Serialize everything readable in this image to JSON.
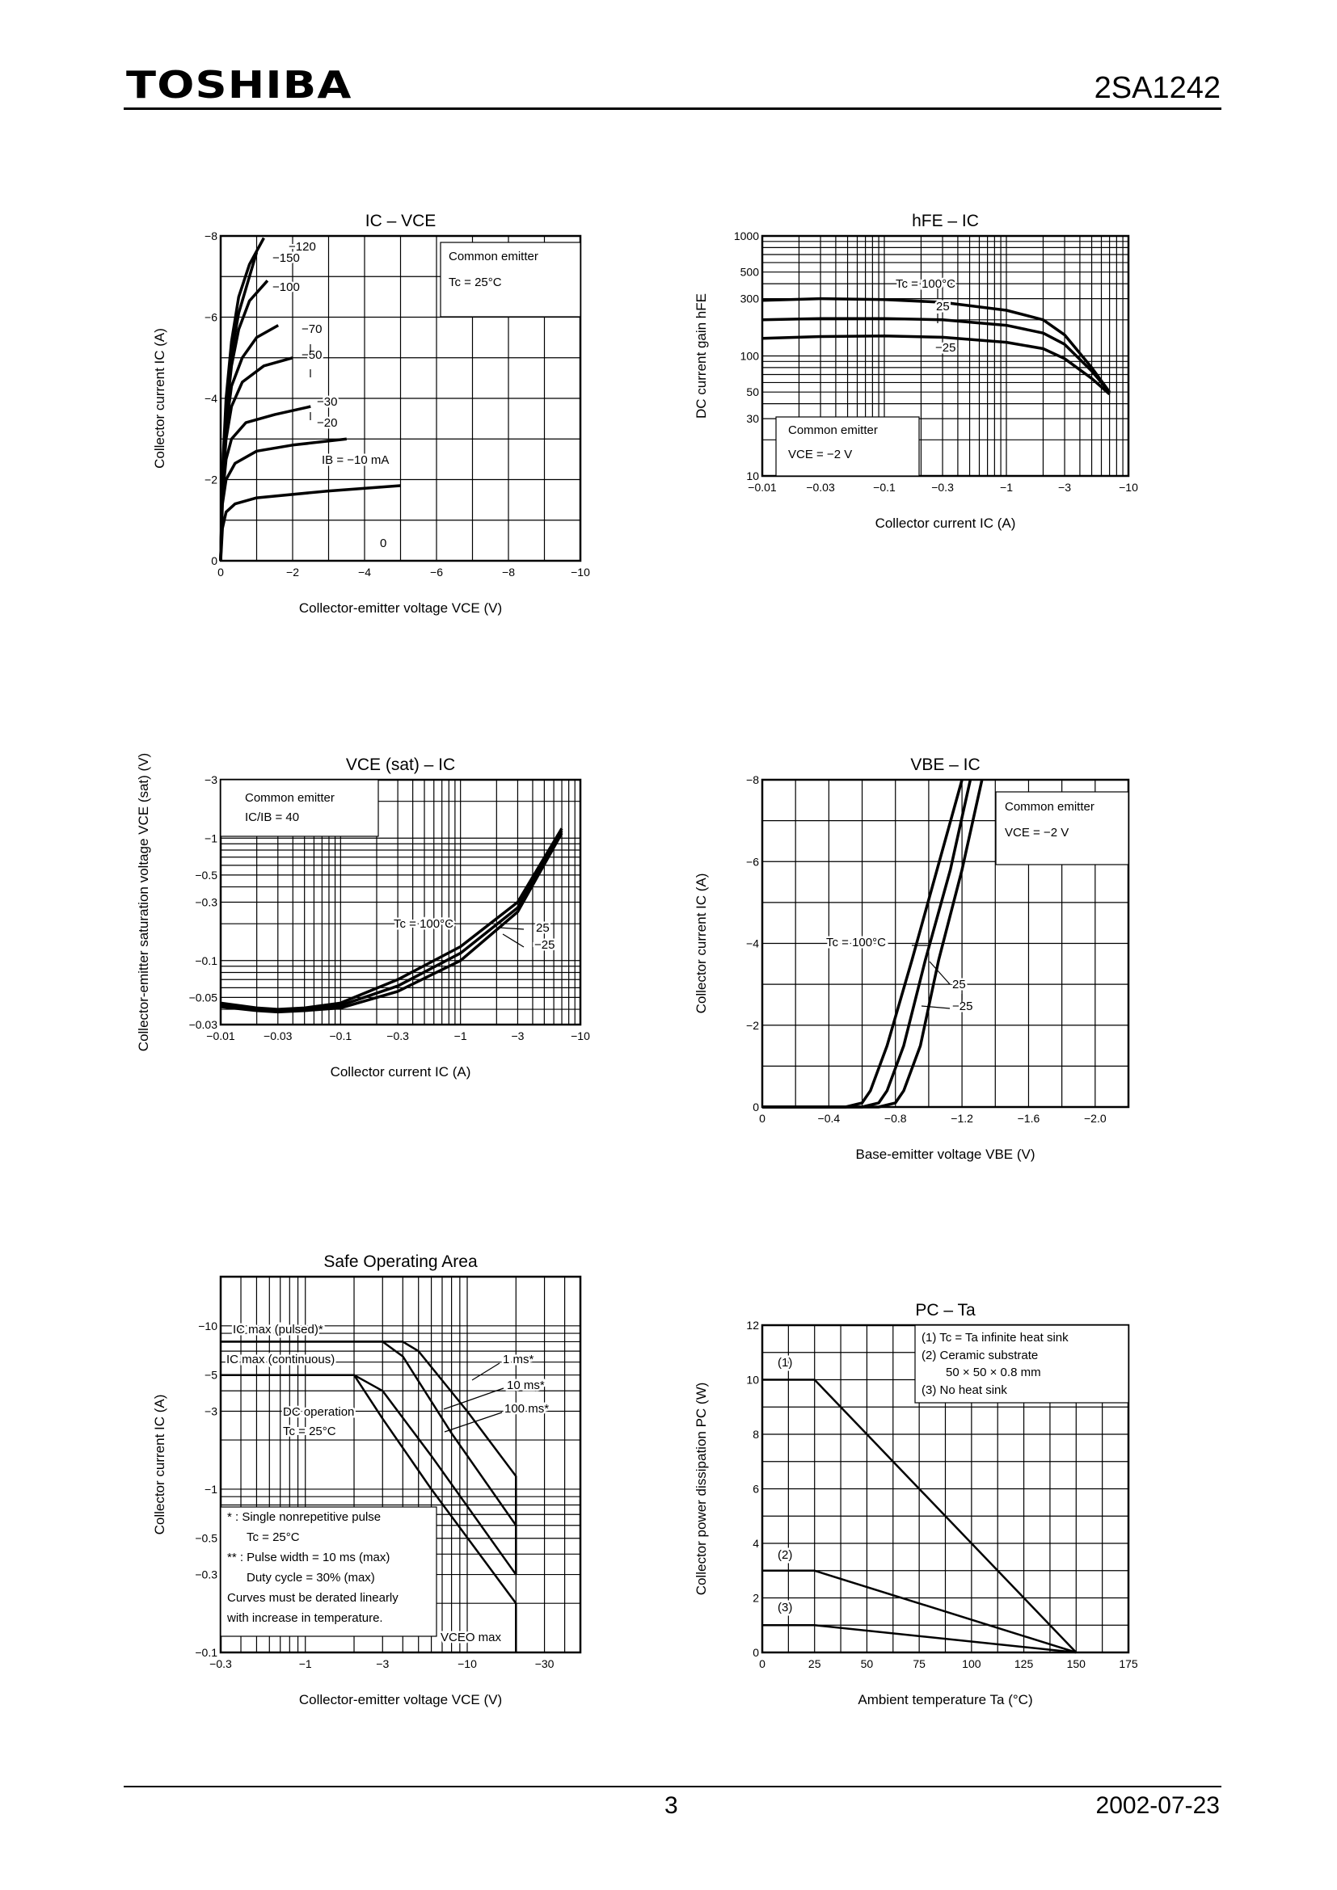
{
  "header": {
    "logo": "TOSHIBA",
    "part_number": "2SA1242"
  },
  "footer": {
    "page": "3",
    "date": "2002-07-23"
  },
  "chart_data": [
    {
      "id": "ic_vce",
      "type": "line",
      "title": "IC – VCE",
      "xlabel": "Collector-emitter voltage   VCE   (V)",
      "ylabel": "Collector current   IC   (A)",
      "xlim": [
        0,
        -10
      ],
      "ylim": [
        0,
        -8
      ],
      "xticks": [
        "0",
        "−2",
        "−4",
        "−6",
        "−8",
        "−10"
      ],
      "yticks": [
        "0",
        "−2",
        "−4",
        "−6",
        "−8"
      ],
      "legend": [
        "Common emitter",
        "Tc = 25°C"
      ],
      "annotations": [
        "−120",
        "−150",
        "−100",
        "−70",
        "−50",
        "−30",
        "−20",
        "IB = −10 mA",
        "0"
      ],
      "series": [
        {
          "name": "−150",
          "x": [
            0,
            -0.05,
            -0.15,
            -0.3,
            -0.5,
            -0.8,
            -1.2
          ],
          "y": [
            0,
            -2.2,
            -4.0,
            -5.4,
            -6.5,
            -7.3,
            -7.95
          ]
        },
        {
          "name": "−120",
          "x": [
            0,
            -0.05,
            -0.15,
            -0.3,
            -0.5,
            -0.8,
            -1.0
          ],
          "y": [
            0,
            -2.1,
            -3.8,
            -5.1,
            -6.1,
            -7.0,
            -7.6
          ]
        },
        {
          "name": "−100",
          "x": [
            0,
            -0.05,
            -0.15,
            -0.3,
            -0.5,
            -0.8,
            -1.3
          ],
          "y": [
            0,
            -2.0,
            -3.6,
            -4.8,
            -5.7,
            -6.4,
            -6.9
          ]
        },
        {
          "name": "−70",
          "x": [
            0,
            -0.05,
            -0.15,
            -0.3,
            -0.6,
            -1.0,
            -1.6
          ],
          "y": [
            0,
            -1.9,
            -3.3,
            -4.3,
            -5.0,
            -5.5,
            -5.8
          ]
        },
        {
          "name": "−50",
          "x": [
            0,
            -0.05,
            -0.15,
            -0.3,
            -0.6,
            -1.2,
            -2.0
          ],
          "y": [
            0,
            -1.8,
            -3.0,
            -3.8,
            -4.4,
            -4.8,
            -5.0
          ]
        },
        {
          "name": "−30",
          "x": [
            0,
            -0.05,
            -0.15,
            -0.3,
            -0.7,
            -1.5,
            -2.5
          ],
          "y": [
            0,
            -1.6,
            -2.5,
            -3.0,
            -3.4,
            -3.6,
            -3.8
          ]
        },
        {
          "name": "−20",
          "x": [
            0,
            -0.05,
            -0.15,
            -0.4,
            -1.0,
            -2.0,
            -3.5
          ],
          "y": [
            0,
            -1.4,
            -2.0,
            -2.4,
            -2.7,
            -2.85,
            -3.0
          ]
        },
        {
          "name": "−10",
          "x": [
            0,
            -0.05,
            -0.15,
            -0.4,
            -1.0,
            -3.0,
            -5.0
          ],
          "y": [
            0,
            -0.8,
            -1.2,
            -1.4,
            -1.55,
            -1.72,
            -1.85
          ]
        }
      ]
    },
    {
      "id": "hfe_ic",
      "type": "line",
      "title": "hFE – IC",
      "xlabel": "Collector current   IC   (A)",
      "ylabel": "DC current gain   hFE",
      "xscale": "log",
      "yscale": "log",
      "xlim": [
        -0.01,
        -10
      ],
      "ylim": [
        10,
        1000
      ],
      "xticks": [
        "−0.01",
        "−0.03",
        "−0.1",
        "−0.3",
        "−1",
        "−3",
        "−10"
      ],
      "yticks": [
        "10",
        "30",
        "50",
        "100",
        "300",
        "500",
        "1000"
      ],
      "legend": [
        "Common emitter",
        "VCE = −2 V"
      ],
      "annotations": [
        "Tc = 100°C",
        "25",
        "−25"
      ],
      "series": [
        {
          "name": "Tc = 100°C",
          "x": [
            -0.01,
            -0.03,
            -0.1,
            -0.3,
            -1,
            -2,
            -3,
            -5,
            -7
          ],
          "y": [
            290,
            300,
            295,
            280,
            240,
            200,
            150,
            80,
            50
          ]
        },
        {
          "name": "25",
          "x": [
            -0.01,
            -0.03,
            -0.1,
            -0.3,
            -1,
            -2,
            -3,
            -5,
            -7
          ],
          "y": [
            200,
            205,
            205,
            200,
            180,
            155,
            125,
            75,
            50
          ]
        },
        {
          "name": "−25",
          "x": [
            -0.01,
            -0.03,
            -0.1,
            -0.3,
            -1,
            -2,
            -3,
            -5,
            -7
          ],
          "y": [
            140,
            145,
            147,
            143,
            130,
            115,
            95,
            65,
            48
          ]
        }
      ]
    },
    {
      "id": "vcesat_ic",
      "type": "line",
      "title": "VCE (sat) – IC",
      "xlabel": "Collector current   IC   (A)",
      "ylabel": "Collector-emitter saturation voltage   VCE (sat)   (V)",
      "xscale": "log",
      "yscale": "log",
      "xlim": [
        -0.01,
        -10
      ],
      "ylim": [
        -0.03,
        -3
      ],
      "xticks": [
        "−0.01",
        "−0.03",
        "−0.1",
        "−0.3",
        "−1",
        "−3",
        "−10"
      ],
      "yticks": [
        "−0.03",
        "−0.05",
        "−0.1",
        "−0.3",
        "−0.5",
        "−1",
        "−3"
      ],
      "legend": [
        "Common emitter",
        "IC/IB = 40"
      ],
      "annotations": [
        "Tc = 100°C",
        "25",
        "−25"
      ],
      "series": [
        {
          "name": "Tc = 100°C",
          "x": [
            -0.01,
            -0.02,
            -0.03,
            -0.05,
            -0.1,
            -0.3,
            -1,
            -3,
            -7
          ],
          "y": [
            -0.045,
            -0.041,
            -0.04,
            -0.041,
            -0.045,
            -0.07,
            -0.13,
            -0.3,
            -1.2
          ]
        },
        {
          "name": "25",
          "x": [
            -0.01,
            -0.02,
            -0.03,
            -0.05,
            -0.1,
            -0.3,
            -1,
            -3,
            -7
          ],
          "y": [
            -0.043,
            -0.04,
            -0.039,
            -0.04,
            -0.043,
            -0.062,
            -0.115,
            -0.27,
            -1.15
          ]
        },
        {
          "name": "−25",
          "x": [
            -0.01,
            -0.02,
            -0.03,
            -0.05,
            -0.1,
            -0.3,
            -1,
            -3,
            -7
          ],
          "y": [
            -0.042,
            -0.039,
            -0.038,
            -0.039,
            -0.041,
            -0.056,
            -0.1,
            -0.25,
            -1.1
          ]
        }
      ]
    },
    {
      "id": "vbe_ic",
      "type": "line",
      "title": "VBE – IC",
      "xlabel": "Base-emitter voltage   VBE   (V)",
      "ylabel": "Collector current   IC   (A)",
      "xlim": [
        0,
        -2.2
      ],
      "ylim": [
        0,
        -8
      ],
      "xticks": [
        "0",
        "−0.4",
        "−0.8",
        "−1.2",
        "−1.6",
        "−2.0"
      ],
      "yticks": [
        "0",
        "−2",
        "−4",
        "−6",
        "−8"
      ],
      "legend": [
        "Common emitter",
        "VCE = −2 V"
      ],
      "annotations": [
        "Tc = 100°C",
        "25",
        "−25"
      ],
      "series": [
        {
          "name": "Tc = 100°C",
          "x": [
            0,
            -0.5,
            -0.6,
            -0.65,
            -0.75,
            -0.9,
            -1.05,
            -1.2
          ],
          "y": [
            0,
            0,
            -0.1,
            -0.4,
            -1.5,
            -3.6,
            -5.8,
            -8
          ]
        },
        {
          "name": "25",
          "x": [
            0,
            -0.6,
            -0.7,
            -0.75,
            -0.85,
            -0.98,
            -1.13,
            -1.25
          ],
          "y": [
            0,
            0,
            -0.1,
            -0.4,
            -1.5,
            -3.6,
            -5.8,
            -8
          ]
        },
        {
          "name": "−25",
          "x": [
            0,
            -0.7,
            -0.8,
            -0.85,
            -0.95,
            -1.06,
            -1.2,
            -1.32
          ],
          "y": [
            0,
            0,
            -0.1,
            -0.4,
            -1.5,
            -3.6,
            -5.8,
            -8
          ]
        }
      ]
    },
    {
      "id": "soa",
      "type": "line",
      "title": "Safe Operating Area",
      "xlabel": "Collector-emitter voltage   VCE   (V)",
      "ylabel": "Collector current   IC   (A)",
      "xscale": "log",
      "yscale": "log",
      "xlim": [
        -0.3,
        -50
      ],
      "ylim": [
        -0.1,
        -20
      ],
      "xticks": [
        "−0.3",
        "−1",
        "−3",
        "−10",
        "−30"
      ],
      "yticks": [
        "−0.1",
        "−0.3",
        "−0.5",
        "−1",
        "−3",
        "−5",
        "−10"
      ],
      "annotations": [
        "IC max (pulsed)*",
        "IC max (continuous)",
        "1 ms*",
        "10 ms*",
        "100 ms*",
        "DC operation",
        "Tc = 25°C",
        "VCEO max"
      ],
      "notes": [
        "*  : Single nonrepetitive pulse",
        "Tc = 25°C",
        "** : Pulse width = 10 ms (max)",
        "Duty cycle = 30% (max)",
        "Curves must be derated linearly",
        "with increase in temperature."
      ],
      "series": [
        {
          "name": "1 ms*",
          "x": [
            -0.3,
            -4,
            -5,
            -10,
            -20,
            -20
          ],
          "y": [
            -8,
            -8,
            -7,
            -3,
            -1.2,
            -0.3
          ]
        },
        {
          "name": "10 ms*",
          "x": [
            -0.3,
            -3,
            -4,
            -8,
            -20,
            -20
          ],
          "y": [
            -8,
            -8,
            -6.5,
            -2.2,
            -0.6,
            -0.3
          ]
        },
        {
          "name": "100 ms*",
          "x": [
            -0.3,
            -2,
            -3,
            -6,
            -20
          ],
          "y": [
            -5,
            -5,
            -4,
            -1.6,
            -0.3
          ]
        },
        {
          "name": "DC operation",
          "x": [
            -0.3,
            -2,
            -3,
            -6,
            -20,
            -20
          ],
          "y": [
            -5,
            -5,
            -2.7,
            -1,
            -0.2,
            -0.1
          ]
        }
      ]
    },
    {
      "id": "pc_ta",
      "type": "line",
      "title": "PC – Ta",
      "xlabel": "Ambient temperature   Ta   (°C)",
      "ylabel": "Collector power dissipation   PC   (W)",
      "xlim": [
        0,
        175
      ],
      "ylim": [
        0,
        12
      ],
      "xticks": [
        "0",
        "25",
        "50",
        "75",
        "100",
        "125",
        "150",
        "175"
      ],
      "yticks": [
        "0",
        "2",
        "4",
        "6",
        "8",
        "10",
        "12"
      ],
      "legend": [
        "(1)  Tc = Ta infinite heat sink",
        "(2)  Ceramic substrate",
        "50 × 50 × 0.8 mm",
        "(3)  No heat sink"
      ],
      "annotations": [
        "(1)",
        "(2)",
        "(3)"
      ],
      "series": [
        {
          "name": "(1)",
          "x": [
            0,
            25,
            150
          ],
          "y": [
            10,
            10,
            0
          ]
        },
        {
          "name": "(2)",
          "x": [
            0,
            25,
            150
          ],
          "y": [
            3,
            3,
            0
          ]
        },
        {
          "name": "(3)",
          "x": [
            0,
            25,
            150
          ],
          "y": [
            1,
            1,
            0
          ]
        }
      ]
    }
  ]
}
